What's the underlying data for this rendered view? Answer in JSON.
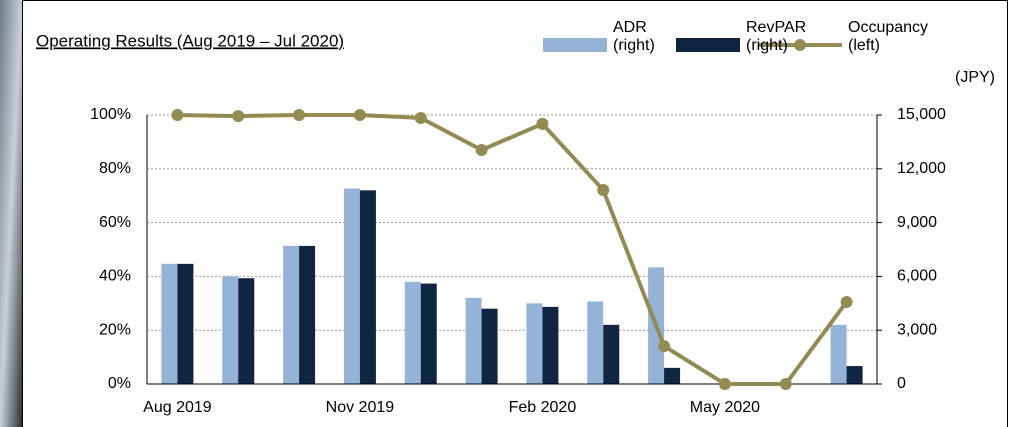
{
  "chart_data": {
    "type": "bar_line",
    "title": "Operating Results (Aug 2019 – Jul 2020)",
    "y2_unit": "(JPY)",
    "categories": [
      "Aug 2019",
      null,
      null,
      "Nov 2019",
      null,
      null,
      "Feb 2020",
      null,
      null,
      "May 2020",
      null,
      null
    ],
    "series": [
      {
        "name": "ADR (right)",
        "type": "bar",
        "axis": "y2",
        "color": "#95b3d7",
        "values": [
          6700,
          6000,
          7700,
          10900,
          5700,
          4800,
          4500,
          4600,
          6500,
          0,
          0,
          3300
        ]
      },
      {
        "name": "RevPAR (right)",
        "type": "bar",
        "axis": "y2",
        "color": "#0f2542",
        "values": [
          6700,
          5900,
          7700,
          10800,
          5600,
          4200,
          4300,
          3300,
          900,
          0,
          0,
          1000
        ]
      },
      {
        "name": "Occupancy (left)",
        "type": "line",
        "axis": "y",
        "color": "#948a54",
        "values": [
          100,
          99.6,
          100,
          100,
          98.9,
          87,
          96.7,
          72.1,
          14.1,
          0,
          0,
          30.5
        ]
      }
    ],
    "ylim": [
      0,
      100
    ],
    "yticks": [
      {
        "value": 0,
        "label": "0%"
      },
      {
        "value": 20,
        "label": "20%"
      },
      {
        "value": 40,
        "label": "40%"
      },
      {
        "value": 60,
        "label": "60%"
      },
      {
        "value": 80,
        "label": "80%"
      },
      {
        "value": 100,
        "label": "100%"
      }
    ],
    "y2lim": [
      0,
      15000
    ],
    "y2ticks": [
      0,
      {
        "value": 3000,
        "label": "3,000"
      },
      {
        "value": 6000,
        "label": "6,000"
      },
      {
        "value": 9000,
        "label": "9,000"
      },
      {
        "value": 12000,
        "label": "12,000"
      },
      {
        "value": 15000,
        "label": "15,000"
      }
    ],
    "grid": true
  }
}
